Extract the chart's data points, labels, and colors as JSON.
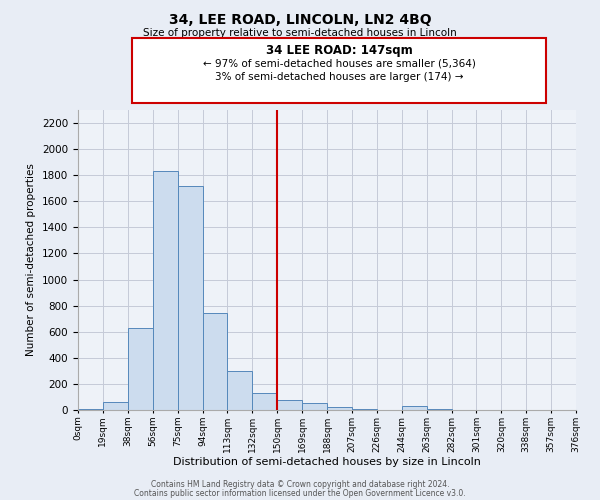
{
  "title": "34, LEE ROAD, LINCOLN, LN2 4BQ",
  "subtitle": "Size of property relative to semi-detached houses in Lincoln",
  "xlabel": "Distribution of semi-detached houses by size in Lincoln",
  "ylabel": "Number of semi-detached properties",
  "bin_labels": [
    "0sqm",
    "19sqm",
    "38sqm",
    "56sqm",
    "75sqm",
    "94sqm",
    "113sqm",
    "132sqm",
    "150sqm",
    "169sqm",
    "188sqm",
    "207sqm",
    "226sqm",
    "244sqm",
    "263sqm",
    "282sqm",
    "301sqm",
    "320sqm",
    "338sqm",
    "357sqm",
    "376sqm"
  ],
  "bar_values": [
    5,
    60,
    630,
    1830,
    1720,
    740,
    300,
    130,
    75,
    50,
    20,
    5,
    0,
    30,
    5,
    0,
    0,
    0,
    0,
    0
  ],
  "bar_color": "#ccdcee",
  "bar_edge_color": "#5588bb",
  "vline_x_index": 8,
  "vline_label": "34 LEE ROAD: 147sqm",
  "annotation_line1": "← 97% of semi-detached houses are smaller (5,364)",
  "annotation_line2": "3% of semi-detached houses are larger (174) →",
  "box_color": "#ffffff",
  "box_edge_color": "#cc0000",
  "vline_color": "#cc0000",
  "ylim": [
    0,
    2300
  ],
  "yticks": [
    0,
    200,
    400,
    600,
    800,
    1000,
    1200,
    1400,
    1600,
    1800,
    2000,
    2200
  ],
  "footer1": "Contains HM Land Registry data © Crown copyright and database right 2024.",
  "footer2": "Contains public sector information licensed under the Open Government Licence v3.0.",
  "bg_color": "#e8edf5",
  "plot_bg_color": "#eef2f8",
  "grid_color": "#c5cad8"
}
